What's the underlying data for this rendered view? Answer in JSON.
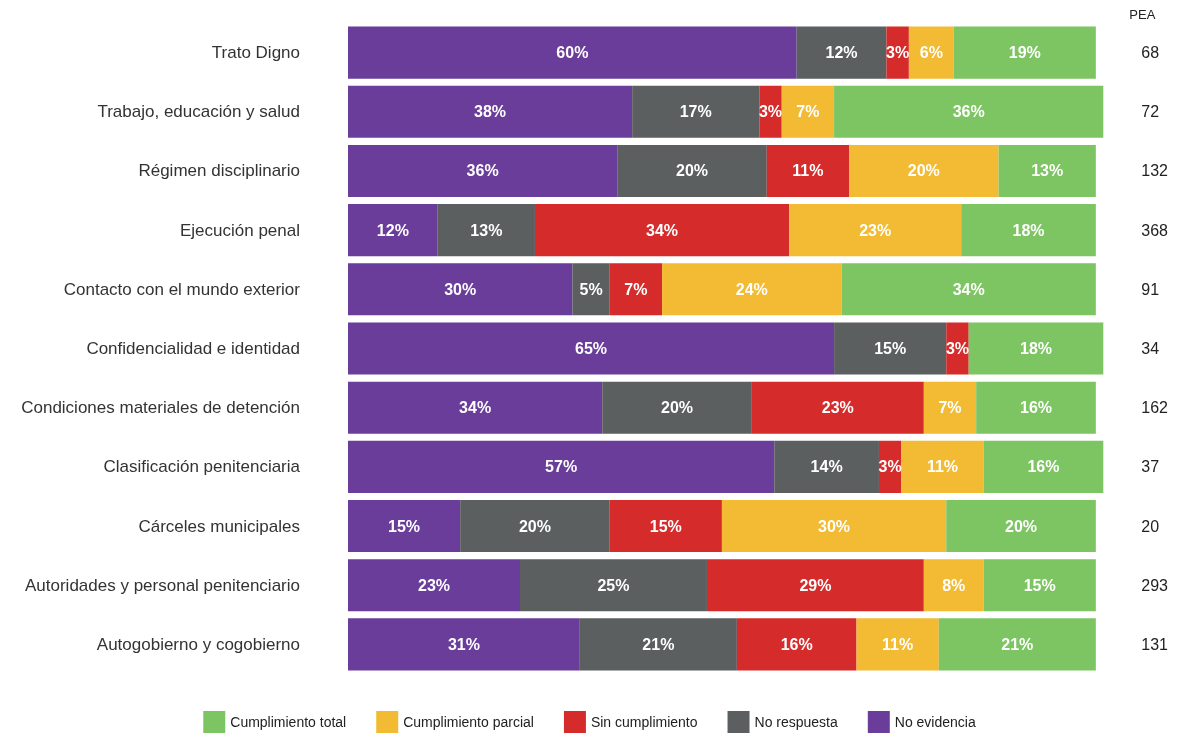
{
  "chart_data": {
    "type": "bar",
    "orientation": "horizontal",
    "stacked": true,
    "legend": "bottom",
    "categories": [
      "Trato Digno",
      "Trabajo, educación y salud",
      "Régimen disciplinario",
      "Ejecución penal",
      "Contacto con el mundo exterior",
      "Confidencialidad e identidad",
      "Condiciones materiales de detención",
      "Clasificación penitenciaria",
      "Cárceles municipales",
      "Autoridades y personal penitenciario",
      "Autogobierno y cogobierno"
    ],
    "series": [
      {
        "name": "No evidencia",
        "color": "#6a3d9a",
        "values": [
          60,
          38,
          36,
          12,
          30,
          65,
          34,
          57,
          15,
          23,
          31
        ],
        "value_labels": [
          "60%",
          "38%",
          "36%",
          "12%",
          "30%",
          "65%",
          "34%",
          "57%",
          "15%",
          "23%",
          "31%"
        ]
      },
      {
        "name": "No respuesta",
        "color": "#5b5f60",
        "values": [
          12,
          17,
          20,
          13,
          5,
          15,
          20,
          14,
          20,
          25,
          21
        ],
        "value_labels": [
          "12%",
          "17%",
          "20%",
          "13%",
          "5%",
          "15%",
          "20%",
          "14%",
          "20%",
          "25%",
          "21%"
        ]
      },
      {
        "name": "Sin cumplimiento",
        "color": "#d62b2b",
        "values": [
          3,
          3,
          11,
          34,
          7,
          3,
          23,
          3,
          15,
          29,
          16
        ],
        "value_labels": [
          "3%",
          "3%",
          "11%",
          "34%",
          "7%",
          "3%",
          "23%",
          "3%",
          "15%",
          "29%",
          "16%"
        ]
      },
      {
        "name": "Cumplimiento parcial",
        "color": "#f2bb33",
        "values": [
          6,
          7,
          20,
          23,
          24,
          null,
          7,
          11,
          30,
          8,
          11
        ],
        "value_labels": [
          "6%",
          "7%",
          "20%",
          "23%",
          "24%",
          null,
          "7%",
          "11%",
          "30%",
          "8%",
          "11%"
        ]
      },
      {
        "name": "Cumplimiento total",
        "color": "#7dc462",
        "values": [
          19,
          36,
          13,
          18,
          34,
          18,
          16,
          16,
          20,
          15,
          21
        ],
        "value_labels": [
          "19%",
          "36%",
          "13%",
          "18%",
          "34%",
          "18%",
          "16%",
          "16%",
          "20%",
          "15%",
          "21%"
        ]
      }
    ],
    "annotations": [
      "PEA",
      "68",
      "72",
      "132",
      "368",
      "91",
      "34",
      "162",
      "37",
      "20",
      "293",
      "131"
    ]
  }
}
